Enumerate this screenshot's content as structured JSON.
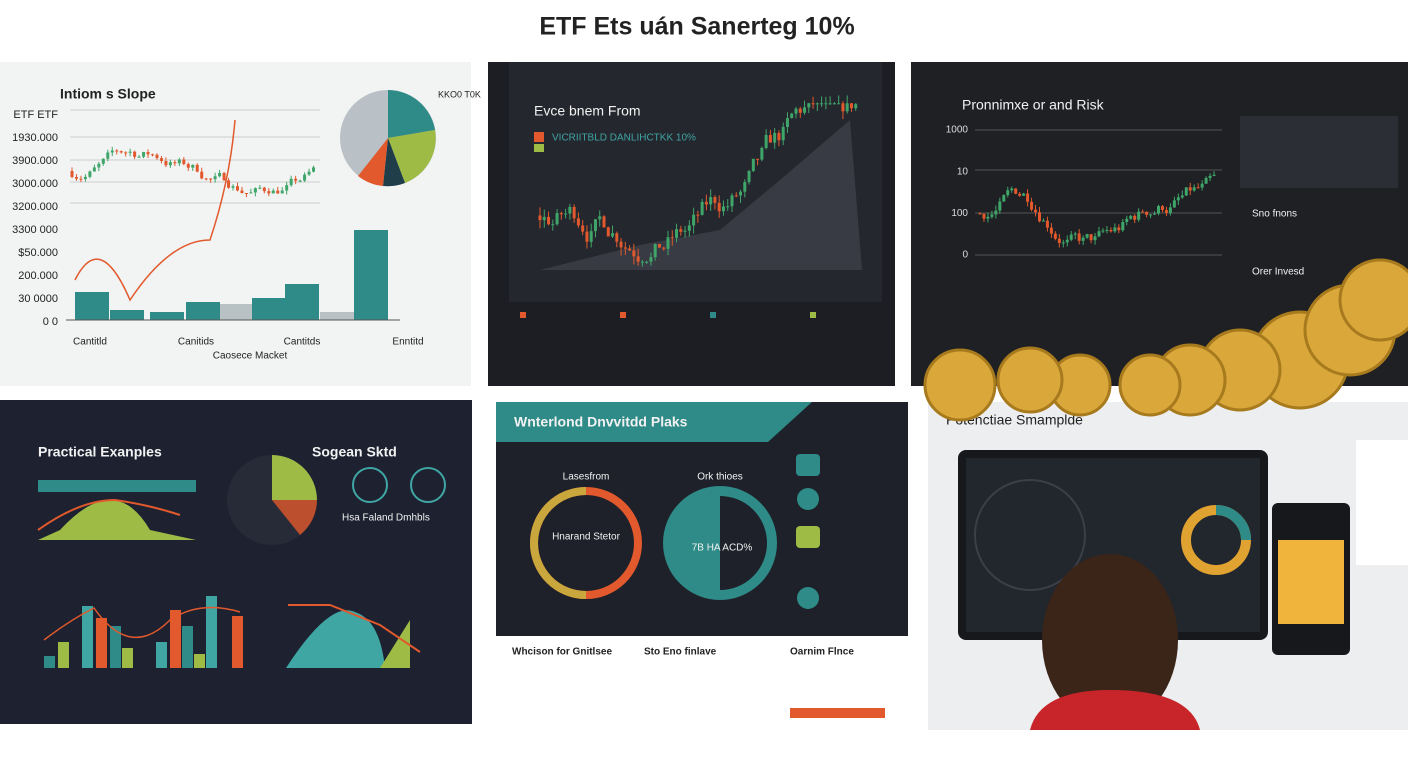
{
  "header": {
    "title": "ETF Ets uán Sanerteg 10%"
  },
  "panels": [
    {
      "title": "Intiom s Slope",
      "y_labels": [
        "ETF ETF",
        "1930.000",
        "3900.000",
        "3000.000",
        "3200.000",
        "3300 000",
        "$50.000",
        "200.000",
        "30 0000",
        "0 0"
      ],
      "x_labels": [
        "Cantitld",
        "Canitids",
        "Cantitds",
        "Enntitd"
      ],
      "x_title": "Caosece Macket",
      "pie_label": "KKO0 T0K"
    },
    {
      "title": "Evce bnem From",
      "subtitle": "VICRIITBLD DANLIHCTKK 10%"
    },
    {
      "title": "Pronnimxe or and Risk",
      "y_labels": [
        "1000",
        "10",
        "100",
        "0"
      ],
      "side_labels": [
        "Sno fnons",
        "Orer Invesd"
      ]
    },
    {
      "title": "Practical Exanples",
      "subtitle": "Sogean Sktd",
      "note": "Hsa Faland Dmhbls"
    },
    {
      "title": "Wnterlond Dnvvitdd Plaks",
      "ring_labels": [
        "Lasesfrom",
        "Ork thioes"
      ],
      "ring_center": [
        "Hnarand Stetor",
        "7B HA ACD%"
      ],
      "footer": [
        "Whcison for Gnitlsee",
        "Sto Eno finlave",
        "Oarnim Flnce"
      ]
    },
    {
      "title": "Potenctiae Smamplde"
    }
  ]
}
